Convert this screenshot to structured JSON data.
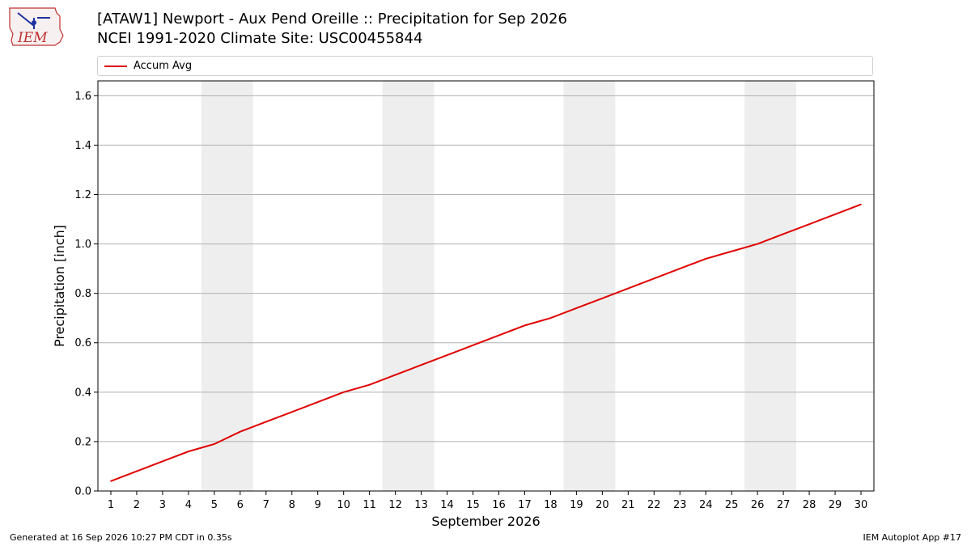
{
  "header": {
    "title_line1": "[ATAW1] Newport - Aux Pend Oreille :: Precipitation for Sep 2026",
    "title_line2": "NCEI 1991-2020 Climate Site: USC00455844"
  },
  "logo": {
    "text": "IEM",
    "icon": "iem-logo-icon"
  },
  "footer": {
    "left": "Generated at 16 Sep 2026 10:27 PM CDT in 0.35s",
    "right": "IEM Autoplot App #17"
  },
  "colors": {
    "line": "#e00000",
    "band": "#eeeeee",
    "grid": "#b0b0b0"
  },
  "chart_data": {
    "type": "line",
    "xlabel": "September 2026",
    "ylabel": "Precipitation [inch]",
    "xlim": [
      0.5,
      30.5
    ],
    "ylim": [
      0.0,
      1.66
    ],
    "yticks": [
      "0.0",
      "0.2",
      "0.4",
      "0.6",
      "0.8",
      "1.0",
      "1.2",
      "1.4",
      "1.6"
    ],
    "xticks": [
      "1",
      "2",
      "3",
      "4",
      "5",
      "6",
      "7",
      "8",
      "9",
      "10",
      "11",
      "12",
      "13",
      "14",
      "15",
      "16",
      "17",
      "18",
      "19",
      "20",
      "21",
      "22",
      "23",
      "24",
      "25",
      "26",
      "27",
      "28",
      "29",
      "30"
    ],
    "grid": "horizontal",
    "legend_position": "top",
    "shaded_days": [
      [
        4.5,
        6.5
      ],
      [
        11.5,
        13.5
      ],
      [
        18.5,
        20.5
      ],
      [
        25.5,
        27.5
      ]
    ],
    "series": [
      {
        "name": "Accum Avg",
        "x": [
          1,
          2,
          3,
          4,
          5,
          6,
          7,
          8,
          9,
          10,
          11,
          12,
          13,
          14,
          15,
          16,
          17,
          18,
          19,
          20,
          21,
          22,
          23,
          24,
          25,
          26,
          27,
          28,
          29,
          30
        ],
        "values": [
          0.04,
          0.08,
          0.12,
          0.16,
          0.19,
          0.24,
          0.28,
          0.32,
          0.36,
          0.4,
          0.43,
          0.47,
          0.51,
          0.55,
          0.59,
          0.63,
          0.67,
          0.7,
          0.74,
          0.78,
          0.82,
          0.86,
          0.9,
          0.94,
          0.97,
          1.0,
          1.04,
          1.08,
          1.12,
          1.16
        ]
      }
    ]
  }
}
